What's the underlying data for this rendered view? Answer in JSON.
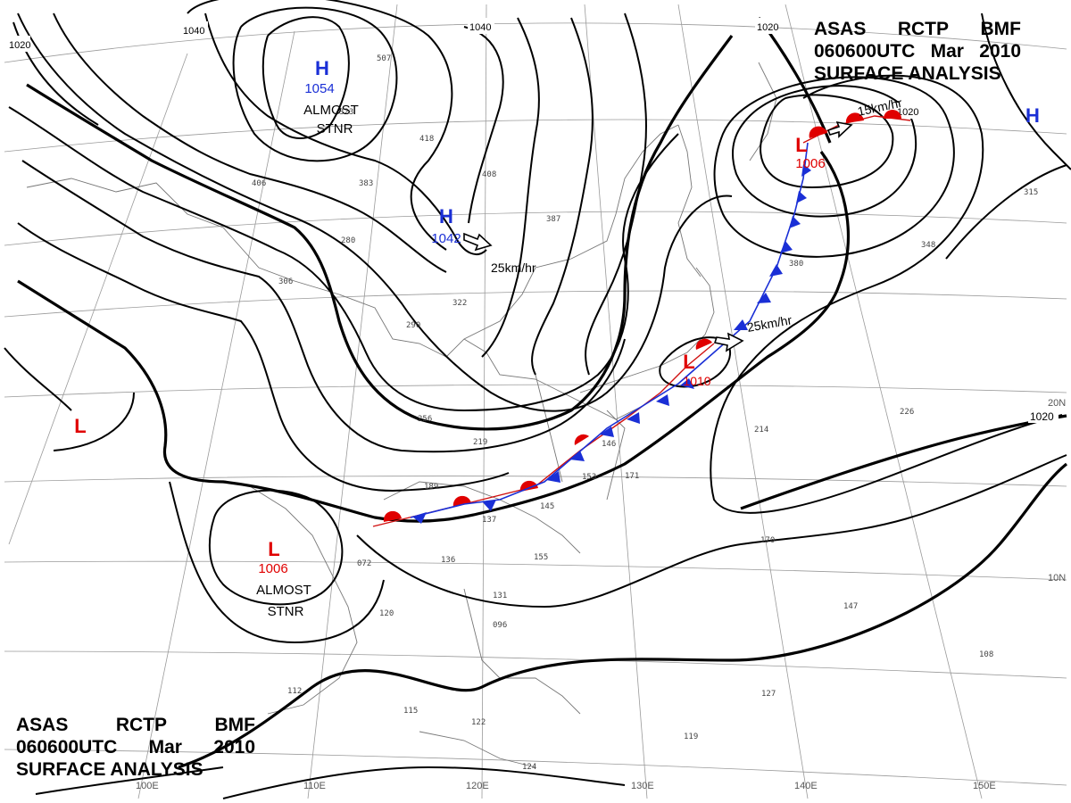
{
  "header": {
    "line1": [
      "ASAS",
      "RCTP",
      "BMF"
    ],
    "line2": [
      "060600UTC",
      "Mar",
      "2010"
    ],
    "line3": "SURFACE ANALYSIS"
  },
  "colors": {
    "high": "#1a2fd6",
    "low": "#e00000",
    "isobar": "#000000",
    "grid": "#9a9a9a",
    "coast": "#777777",
    "cold_front": "#1a2fd6",
    "warm_front": "#e00000"
  },
  "pressure_centers": [
    {
      "type": "H",
      "value": "1054",
      "note": [
        "ALMOST",
        "STNR"
      ]
    },
    {
      "type": "H",
      "value": "1042",
      "motion": "25km/hr"
    },
    {
      "type": "H",
      "value": ""
    },
    {
      "type": "L",
      "value": "1006",
      "motion": "15km/hr"
    },
    {
      "type": "L",
      "value": "1010",
      "motion": "25km/hr"
    },
    {
      "type": "L",
      "value": "1006",
      "note": [
        "ALMOST",
        "STNR"
      ]
    },
    {
      "type": "L",
      "value": ""
    }
  ],
  "isobar_labels": [
    "1020",
    "1040",
    "1040",
    "1020",
    "1020",
    "1020"
  ],
  "lon_labels": [
    "100E",
    "110E",
    "120E",
    "130E",
    "140E",
    "150E"
  ],
  "lat_labels": [
    "20N",
    "10N"
  ],
  "station_plots": [
    "507",
    "323",
    "418",
    "406",
    "383",
    "408",
    "387",
    "280",
    "322",
    "290",
    "306",
    "256",
    "219",
    "189",
    "137",
    "145",
    "155",
    "136",
    "120",
    "112",
    "115",
    "122",
    "124",
    "131",
    "096",
    "072",
    "171",
    "153",
    "146",
    "214",
    "226",
    "170",
    "147",
    "108",
    "127",
    "119",
    "315",
    "348",
    "380"
  ]
}
